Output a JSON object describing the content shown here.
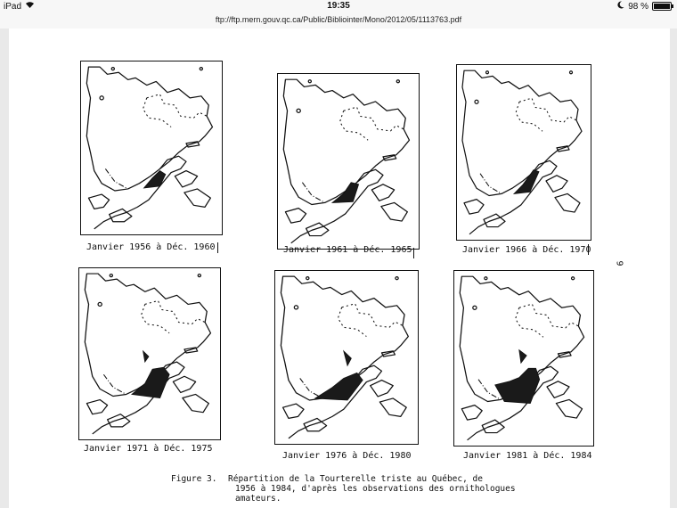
{
  "statusbar": {
    "device": "iPad",
    "time": "19:35",
    "battery": "98 %",
    "battery_level": 0.98
  },
  "browser": {
    "url": "ftp://ftp.mern.gouv.qc.ca/Public/Bibliointer/Mono/2012/05/1113763.pdf"
  },
  "document": {
    "page_number": "9",
    "maps": [
      {
        "label": "Janvier 1956 à Déc. 1960"
      },
      {
        "label": "Janvier 1961 à Déc. 1965"
      },
      {
        "label": "Janvier 1966 à Déc. 1970"
      },
      {
        "label": "Janvier 1971 à Déc. 1975"
      },
      {
        "label": "Janvier 1976 à Déc. 1980"
      },
      {
        "label": "Janvier 1981 à Déc. 1984"
      }
    ],
    "caption": {
      "number": "Figure 3.",
      "line1": "Répartition de la Tourterelle triste au Québec, de",
      "line2": "1956 à 1984, d'après les observations des ornithologues",
      "line3": "amateurs."
    }
  }
}
